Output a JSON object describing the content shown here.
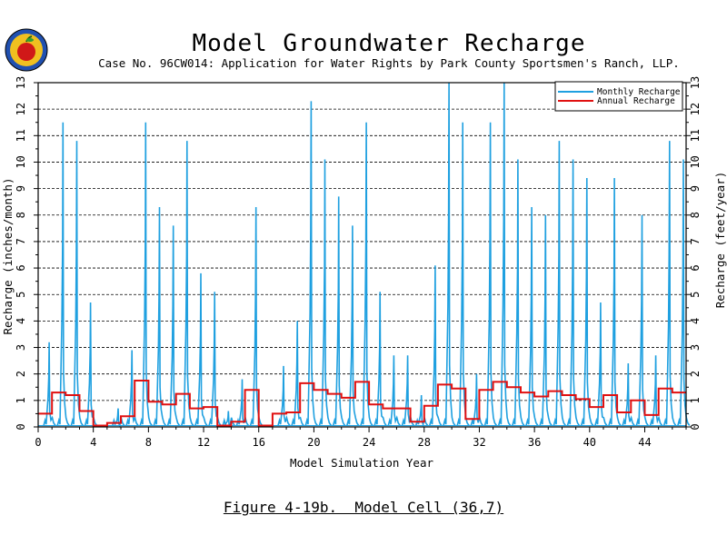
{
  "chart_data": {
    "type": "line",
    "title": "Model Groundwater Recharge",
    "subtitle": "Case No. 96CW014: Application for Water Rights by Park County Sportsmen's Ranch, LLP.",
    "xlabel": "Model Simulation Year",
    "ylabel_left": "Recharge (inches/month)",
    "ylabel_right": "Recharge (feet/year)",
    "xlim": [
      0,
      47
    ],
    "ylim": [
      0,
      13
    ],
    "x_ticks": [
      0,
      4,
      8,
      12,
      16,
      20,
      24,
      28,
      32,
      36,
      40,
      44
    ],
    "y_ticks": [
      0,
      1,
      2,
      3,
      4,
      5,
      6,
      7,
      8,
      9,
      10,
      11,
      12,
      13
    ],
    "grid": true,
    "legend_position": "top-right",
    "series": [
      {
        "name": "Monthly Recharge",
        "color": "#1fa0e0",
        "peaks": [
          {
            "x": 0.8,
            "y": 3.2
          },
          {
            "x": 1.8,
            "y": 11.5
          },
          {
            "x": 2.8,
            "y": 10.8
          },
          {
            "x": 3.8,
            "y": 4.7
          },
          {
            "x": 5.8,
            "y": 0.7
          },
          {
            "x": 6.8,
            "y": 2.9
          },
          {
            "x": 7.8,
            "y": 11.5
          },
          {
            "x": 8.8,
            "y": 8.3
          },
          {
            "x": 9.8,
            "y": 7.6
          },
          {
            "x": 10.8,
            "y": 10.8
          },
          {
            "x": 11.8,
            "y": 5.8
          },
          {
            "x": 12.8,
            "y": 5.1
          },
          {
            "x": 13.8,
            "y": 0.6
          },
          {
            "x": 14.8,
            "y": 1.8
          },
          {
            "x": 15.8,
            "y": 8.3
          },
          {
            "x": 17.8,
            "y": 2.3
          },
          {
            "x": 18.8,
            "y": 4.0
          },
          {
            "x": 19.8,
            "y": 12.3
          },
          {
            "x": 20.8,
            "y": 10.1
          },
          {
            "x": 21.8,
            "y": 8.7
          },
          {
            "x": 22.8,
            "y": 7.6
          },
          {
            "x": 23.8,
            "y": 11.5
          },
          {
            "x": 24.8,
            "y": 5.1
          },
          {
            "x": 25.8,
            "y": 2.7
          },
          {
            "x": 26.8,
            "y": 2.7
          },
          {
            "x": 27.8,
            "y": 1.2
          },
          {
            "x": 28.8,
            "y": 6.1
          },
          {
            "x": 29.8,
            "y": 13.0
          },
          {
            "x": 30.8,
            "y": 11.5
          },
          {
            "x": 31.8,
            "y": 2.0
          },
          {
            "x": 32.8,
            "y": 11.5
          },
          {
            "x": 33.8,
            "y": 13.0
          },
          {
            "x": 34.8,
            "y": 10.1
          },
          {
            "x": 35.8,
            "y": 8.3
          },
          {
            "x": 36.8,
            "y": 8.0
          },
          {
            "x": 37.8,
            "y": 10.8
          },
          {
            "x": 38.8,
            "y": 10.1
          },
          {
            "x": 39.8,
            "y": 9.4
          },
          {
            "x": 40.8,
            "y": 4.7
          },
          {
            "x": 41.8,
            "y": 9.4
          },
          {
            "x": 42.8,
            "y": 2.4
          },
          {
            "x": 43.8,
            "y": 8.0
          },
          {
            "x": 44.8,
            "y": 2.7
          },
          {
            "x": 45.8,
            "y": 10.8
          },
          {
            "x": 46.8,
            "y": 10.1
          }
        ]
      },
      {
        "name": "Annual Recharge",
        "color": "#e01010",
        "steps": [
          {
            "x0": 0,
            "x1": 1,
            "y": 0.5
          },
          {
            "x0": 1,
            "x1": 2,
            "y": 1.3
          },
          {
            "x0": 2,
            "x1": 3,
            "y": 1.2
          },
          {
            "x0": 3,
            "x1": 4,
            "y": 0.6
          },
          {
            "x0": 4,
            "x1": 5,
            "y": 0.05
          },
          {
            "x0": 5,
            "x1": 6,
            "y": 0.15
          },
          {
            "x0": 6,
            "x1": 7,
            "y": 0.4
          },
          {
            "x0": 7,
            "x1": 8,
            "y": 1.75
          },
          {
            "x0": 8,
            "x1": 9,
            "y": 0.95
          },
          {
            "x0": 9,
            "x1": 10,
            "y": 0.85
          },
          {
            "x0": 10,
            "x1": 11,
            "y": 1.25
          },
          {
            "x0": 11,
            "x1": 12,
            "y": 0.7
          },
          {
            "x0": 12,
            "x1": 13,
            "y": 0.75
          },
          {
            "x0": 13,
            "x1": 14,
            "y": 0.05
          },
          {
            "x0": 14,
            "x1": 15,
            "y": 0.2
          },
          {
            "x0": 15,
            "x1": 16,
            "y": 1.4
          },
          {
            "x0": 16,
            "x1": 17,
            "y": 0.05
          },
          {
            "x0": 17,
            "x1": 18,
            "y": 0.5
          },
          {
            "x0": 18,
            "x1": 19,
            "y": 0.55
          },
          {
            "x0": 19,
            "x1": 20,
            "y": 1.65
          },
          {
            "x0": 20,
            "x1": 21,
            "y": 1.4
          },
          {
            "x0": 21,
            "x1": 22,
            "y": 1.25
          },
          {
            "x0": 22,
            "x1": 23,
            "y": 1.1
          },
          {
            "x0": 23,
            "x1": 24,
            "y": 1.7
          },
          {
            "x0": 24,
            "x1": 25,
            "y": 0.85
          },
          {
            "x0": 25,
            "x1": 26,
            "y": 0.7
          },
          {
            "x0": 26,
            "x1": 27,
            "y": 0.7
          },
          {
            "x0": 27,
            "x1": 28,
            "y": 0.2
          },
          {
            "x0": 28,
            "x1": 29,
            "y": 0.8
          },
          {
            "x0": 29,
            "x1": 30,
            "y": 1.6
          },
          {
            "x0": 30,
            "x1": 31,
            "y": 1.45
          },
          {
            "x0": 31,
            "x1": 32,
            "y": 0.3
          },
          {
            "x0": 32,
            "x1": 33,
            "y": 1.4
          },
          {
            "x0": 33,
            "x1": 34,
            "y": 1.7
          },
          {
            "x0": 34,
            "x1": 35,
            "y": 1.5
          },
          {
            "x0": 35,
            "x1": 36,
            "y": 1.3
          },
          {
            "x0": 36,
            "x1": 37,
            "y": 1.15
          },
          {
            "x0": 37,
            "x1": 38,
            "y": 1.35
          },
          {
            "x0": 38,
            "x1": 39,
            "y": 1.2
          },
          {
            "x0": 39,
            "x1": 40,
            "y": 1.05
          },
          {
            "x0": 40,
            "x1": 41,
            "y": 0.75
          },
          {
            "x0": 41,
            "x1": 42,
            "y": 1.2
          },
          {
            "x0": 42,
            "x1": 43,
            "y": 0.55
          },
          {
            "x0": 43,
            "x1": 44,
            "y": 1.0
          },
          {
            "x0": 44,
            "x1": 45,
            "y": 0.45
          },
          {
            "x0": 45,
            "x1": 46,
            "y": 1.45
          },
          {
            "x0": 46,
            "x1": 47,
            "y": 1.3
          }
        ]
      }
    ]
  },
  "caption": "Figure 4-19b.  Model Cell (36,7)"
}
